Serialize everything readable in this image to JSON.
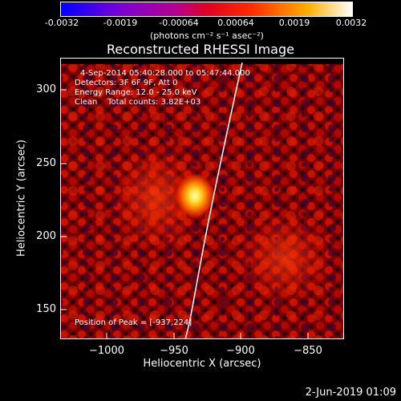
{
  "colorbar": {
    "ticks": [
      "-0.0032",
      "-0.0019",
      "-0.00064",
      "0.00064",
      "0.0019",
      "0.0032"
    ],
    "unit_label": "(photons cm⁻² s⁻¹ asec⁻²)",
    "colors": [
      "#0000ff",
      "#7a00d8",
      "#b8008a",
      "#ff2a00",
      "#ffb000",
      "#ffffff"
    ]
  },
  "title": "Reconstructed RHESSI Image",
  "info": {
    "time_range": "4-Sep-2014 05:40:28.000 to 05:47:44.000",
    "detectors": "Detectors: 3F 6F 9F, Att 0",
    "energy": "Energy Range: 12.0 - 25.0 keV",
    "algorithm": "Clean    Total counts: 3.82E+03",
    "peak": "Position of Peak = [-937,224]"
  },
  "axes": {
    "xlabel": "Heliocentric X (arcsec)",
    "ylabel": "Heliocentric Y (arcsec)",
    "xticks": [
      "−1000",
      "−950",
      "−900",
      "−850"
    ],
    "yticks": [
      "300",
      "250",
      "200",
      "150"
    ]
  },
  "footer": "2-Jun-2019 01:09"
}
